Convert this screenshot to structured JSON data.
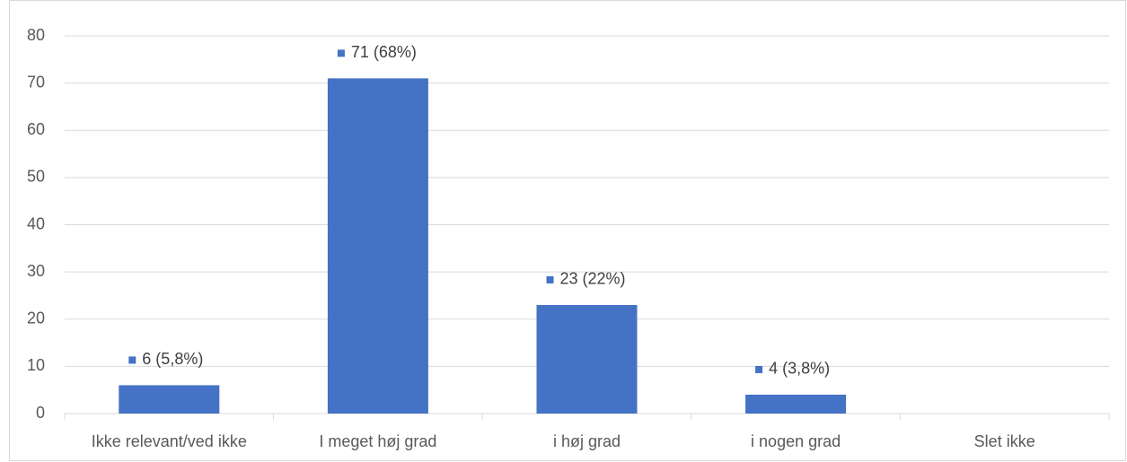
{
  "chart_data": {
    "type": "bar",
    "categories": [
      "Ikke relevant/ved ikke",
      "I meget høj grad",
      "i høj grad",
      "i nogen grad",
      "Slet ikke"
    ],
    "values": [
      6,
      71,
      23,
      4,
      0
    ],
    "value_labels": [
      "6 (5,8%)",
      "71 (68%)",
      "23 (22%)",
      "4 (3,8%)",
      null
    ],
    "color": "#4472c4",
    "ylim": [
      0,
      80
    ],
    "yticks": [
      0,
      10,
      20,
      30,
      40,
      50,
      60,
      70,
      80
    ],
    "grid": true
  }
}
